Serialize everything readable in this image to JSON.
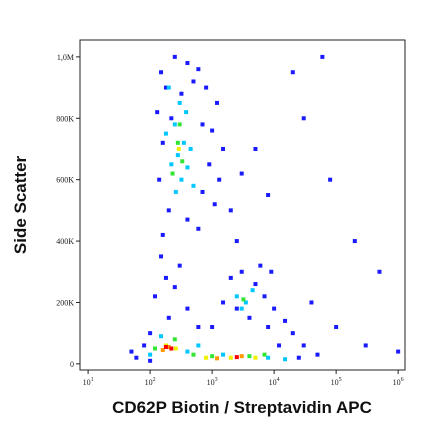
{
  "chart_data": {
    "type": "scatter",
    "x_title": "CD62P Biotin / Streptavidin APC",
    "y_title": "Side Scatter",
    "xscale": "log",
    "xlim": [
      7.4,
      1290000
    ],
    "ylim": [
      -20000,
      1055000
    ],
    "xticks": [
      {
        "value": 10,
        "label": "10",
        "exponent": "1"
      },
      {
        "value": 100,
        "label": "10",
        "exponent": "2"
      },
      {
        "value": 1000,
        "label": "10",
        "exponent": "3"
      },
      {
        "value": 10000,
        "label": "10",
        "exponent": "4"
      },
      {
        "value": 100000,
        "label": "10",
        "exponent": "5"
      },
      {
        "value": 1000000,
        "label": "10",
        "exponent": "6"
      }
    ],
    "yticks": [
      0,
      {
        "value": 200000,
        "label": "200K"
      },
      {
        "value": 400000,
        "label": "400K"
      },
      {
        "value": 600000,
        "label": "600K"
      },
      {
        "value": 800000,
        "label": "800K"
      },
      {
        "value": 1000000,
        "label": "1,0M"
      }
    ],
    "series": [
      {
        "color": "#1a1aff",
        "x": [
          150,
          250,
          400,
          600,
          180,
          320,
          500,
          800,
          1200,
          130,
          220,
          700,
          1000,
          1500,
          160,
          900,
          1300,
          140,
          700,
          1100,
          200,
          400,
          160,
          600,
          2000,
          3000,
          5000,
          8000,
          2500,
          150,
          300,
          180,
          250,
          120,
          400,
          200,
          600,
          100,
          80,
          50,
          60,
          100,
          1000,
          1500,
          2000,
          3000,
          5000,
          7000,
          10000,
          15000,
          20000,
          30000,
          50000,
          25000,
          12000,
          8000,
          4000,
          2500,
          6000,
          9000,
          40000,
          100000,
          200000,
          80000,
          30000,
          20000,
          60000,
          500000,
          1000000,
          300000
        ],
        "values": [
          950000,
          1000000,
          980000,
          960000,
          900000,
          880000,
          920000,
          900000,
          850000,
          820000,
          800000,
          780000,
          760000,
          700000,
          720000,
          650000,
          600000,
          600000,
          560000,
          520000,
          500000,
          470000,
          420000,
          440000,
          500000,
          620000,
          700000,
          550000,
          400000,
          350000,
          320000,
          280000,
          250000,
          220000,
          180000,
          150000,
          120000,
          100000,
          60000,
          40000,
          20000,
          10000,
          120000,
          200000,
          280000,
          300000,
          260000,
          220000,
          180000,
          140000,
          100000,
          60000,
          30000,
          20000,
          60000,
          120000,
          150000,
          180000,
          320000,
          300000,
          200000,
          120000,
          400000,
          600000,
          800000,
          950000,
          1000000,
          300000,
          40000,
          60000
        ]
      },
      {
        "color": "#00c8ff",
        "x": [
          200,
          300,
          250,
          350,
          280,
          450,
          220,
          320,
          400,
          500,
          260,
          180,
          380,
          2500,
          3500,
          4500,
          3000,
          100,
          400,
          1500,
          8000,
          15000,
          600,
          150
        ],
        "values": [
          900000,
          850000,
          780000,
          720000,
          680000,
          700000,
          650000,
          600000,
          640000,
          580000,
          560000,
          750000,
          820000,
          220000,
          200000,
          240000,
          180000,
          30000,
          40000,
          30000,
          20000,
          15000,
          60000,
          90000
        ]
      },
      {
        "color": "#33e533",
        "x": [
          280,
          330,
          300,
          230,
          3200,
          500,
          1000,
          4000,
          120,
          250,
          7000
        ],
        "values": [
          720000,
          660000,
          780000,
          620000,
          210000,
          30000,
          25000,
          25000,
          50000,
          80000,
          30000
        ]
      },
      {
        "color": "#f0f000",
        "x": [
          180,
          260,
          800,
          2000,
          5000,
          290
        ],
        "values": [
          60000,
          50000,
          20000,
          20000,
          20000,
          700000
        ]
      },
      {
        "color": "#ff9900",
        "x": [
          200,
          160,
          3000,
          1200
        ],
        "values": [
          55000,
          45000,
          25000,
          18000
        ]
      },
      {
        "color": "#ff0000",
        "x": [
          180,
          220,
          2500
        ],
        "values": [
          55000,
          50000,
          22000
        ]
      }
    ]
  }
}
